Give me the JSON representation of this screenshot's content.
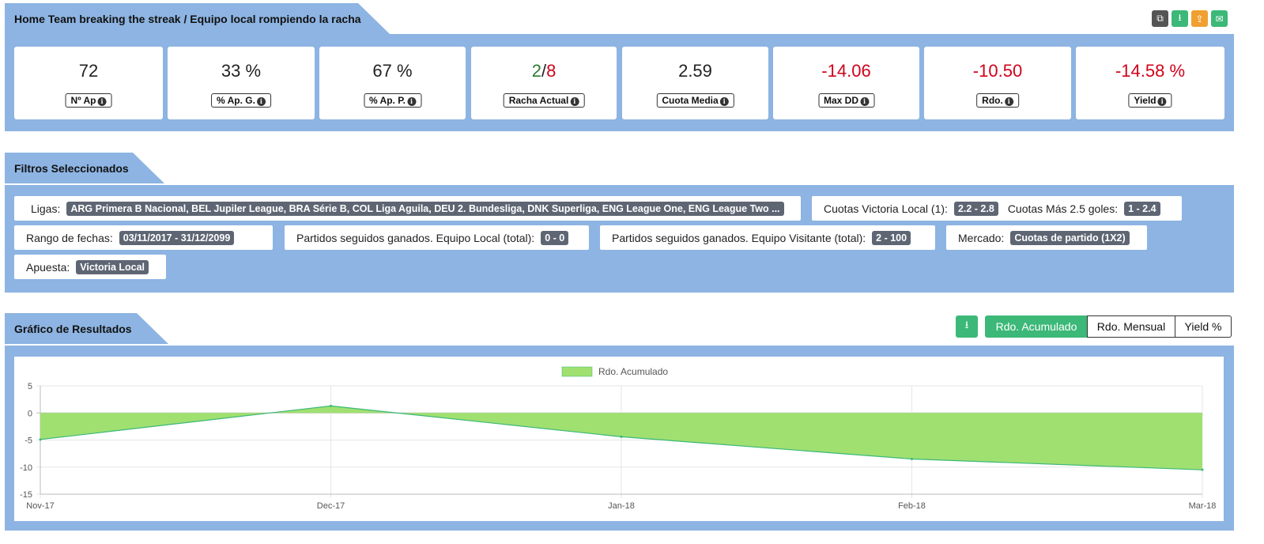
{
  "summary": {
    "title": "Home Team breaking the streak / Equipo local rompiendo la racha",
    "tools": [
      {
        "icon": "copy-icon",
        "color": "#555555",
        "glyph": "⧉"
      },
      {
        "icon": "download-icon",
        "color": "#3cb878",
        "glyph": "⭳"
      },
      {
        "icon": "share-icon",
        "color": "#f0a030",
        "glyph": "⇪"
      },
      {
        "icon": "email-icon",
        "color": "#3cb878",
        "glyph": "✉"
      }
    ],
    "kpis": [
      {
        "value": "72",
        "label": "Nº Ap"
      },
      {
        "value": "33 %",
        "label": "% Ap. G."
      },
      {
        "value": "67 %",
        "label": "% Ap. P."
      },
      {
        "value_won": "2",
        "value_sep": "/",
        "value_lost": "8",
        "label": "Racha Actual"
      },
      {
        "value": "2.59",
        "label": "Cuota Media"
      },
      {
        "value": "-14.06",
        "label": "Max DD"
      },
      {
        "value": "-10.50",
        "label": "Rdo."
      },
      {
        "value": "-14.58 %",
        "label": "Yield"
      }
    ]
  },
  "filters": {
    "title": "Filtros Seleccionados",
    "ligas": {
      "label": "Ligas:",
      "value": "ARG Primera B Nacional, BEL Jupiler League, BRA Série B, COL Liga Aguila, DEU 2. Bundesliga, DNK Superliga, ENG League One, ENG League Two ..."
    },
    "cuotas": {
      "label1": "Cuotas Victoria Local (1):",
      "value1": "2.2 - 2.8",
      "label2": "Cuotas Más 2.5 goles:",
      "value2": "1 - 2.4"
    },
    "fechas": {
      "label": "Rango de fechas:",
      "value": "03/11/2017 - 31/12/2099"
    },
    "local": {
      "label": "Partidos seguidos ganados. Equipo Local (total):",
      "value": "0 - 0"
    },
    "visitante": {
      "label": "Partidos seguidos ganados. Equipo Visitante (total):",
      "value": "2 - 100"
    },
    "mercado": {
      "label": "Mercado:",
      "value": "Cuotas de partido (1X2)"
    },
    "apuesta": {
      "label": "Apuesta:",
      "value": "Victoria Local"
    }
  },
  "results": {
    "title": "Gráfico de Resultados",
    "download_icon": "download-icon",
    "buttons": [
      "Rdo. Acumulado",
      "Rdo. Mensual",
      "Yield %"
    ],
    "active_button": 0
  },
  "colors": {
    "panel": "#8db4e2",
    "accent": "#3cb878",
    "negative": "#d0021b",
    "positive": "#2e7d32",
    "area_fill": "#a0e070",
    "area_line": "#3cb878"
  },
  "chart_data": {
    "type": "area",
    "x": [
      "Nov-17",
      "Dec-17",
      "Jan-18",
      "Feb-18",
      "Mar-18"
    ],
    "series": [
      {
        "name": "Rdo. Acumulado",
        "values": [
          -4.9,
          1.3,
          -4.4,
          -8.5,
          -10.5
        ]
      }
    ],
    "ylim": [
      -15,
      5
    ],
    "yticks": [
      5,
      0,
      -5,
      -10,
      -15
    ],
    "legend": "top",
    "grid": true
  }
}
